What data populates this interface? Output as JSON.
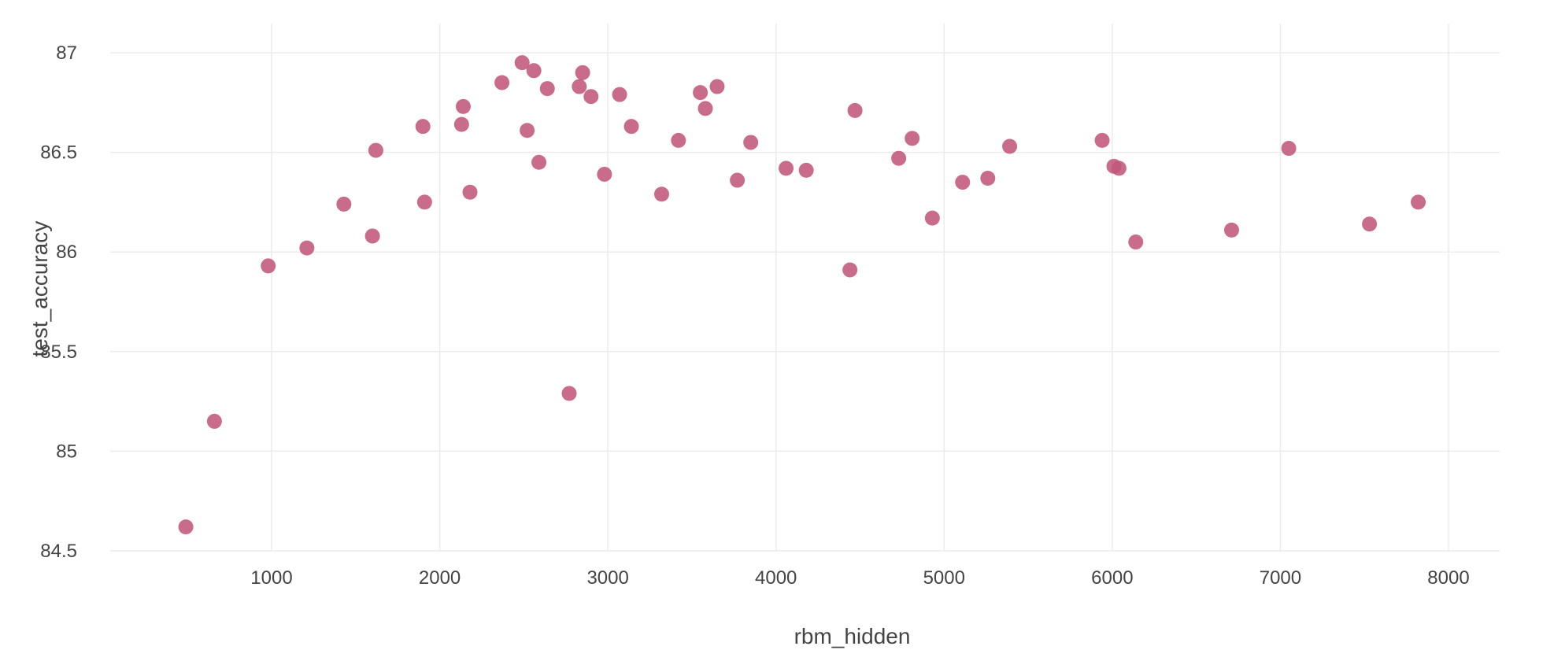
{
  "chart_data": {
    "type": "scatter",
    "title": "",
    "xlabel": "rbm_hidden",
    "ylabel": "test_accuracy",
    "xlim": [
      50,
      8300
    ],
    "ylim": [
      84.5,
      87.1
    ],
    "xticks": [
      1000,
      2000,
      3000,
      4000,
      5000,
      6000,
      7000,
      8000
    ],
    "yticks": [
      84.5,
      85,
      85.5,
      86,
      86.5,
      87
    ],
    "xtick_labels": [
      "1000",
      "2000",
      "3000",
      "4000",
      "5000",
      "6000",
      "7000",
      "8000"
    ],
    "ytick_labels": [
      "84.5",
      "85",
      "85.5",
      "86",
      "86.5",
      "87"
    ],
    "grid": true,
    "legend": "none",
    "marker_color": "#c2577a",
    "series": [
      {
        "points": [
          [
            490,
            84.62
          ],
          [
            660,
            85.15
          ],
          [
            980,
            85.93
          ],
          [
            1210,
            86.02
          ],
          [
            1430,
            86.24
          ],
          [
            1600,
            86.08
          ],
          [
            1620,
            86.51
          ],
          [
            1900,
            86.63
          ],
          [
            1910,
            86.25
          ],
          [
            2130,
            86.64
          ],
          [
            2140,
            86.73
          ],
          [
            2180,
            86.3
          ],
          [
            2370,
            86.85
          ],
          [
            2490,
            86.95
          ],
          [
            2520,
            86.61
          ],
          [
            2560,
            86.91
          ],
          [
            2590,
            86.45
          ],
          [
            2640,
            86.82
          ],
          [
            2770,
            85.29
          ],
          [
            2830,
            86.83
          ],
          [
            2850,
            86.9
          ],
          [
            2900,
            86.78
          ],
          [
            2980,
            86.39
          ],
          [
            3070,
            86.79
          ],
          [
            3140,
            86.63
          ],
          [
            3320,
            86.29
          ],
          [
            3420,
            86.56
          ],
          [
            3550,
            86.8
          ],
          [
            3580,
            86.72
          ],
          [
            3650,
            86.83
          ],
          [
            3770,
            86.36
          ],
          [
            3850,
            86.55
          ],
          [
            4060,
            86.42
          ],
          [
            4180,
            86.41
          ],
          [
            4440,
            85.91
          ],
          [
            4470,
            86.71
          ],
          [
            4730,
            86.47
          ],
          [
            4810,
            86.57
          ],
          [
            4930,
            86.17
          ],
          [
            5110,
            86.35
          ],
          [
            5260,
            86.37
          ],
          [
            5390,
            86.53
          ],
          [
            5940,
            86.56
          ],
          [
            6010,
            86.43
          ],
          [
            6040,
            86.42
          ],
          [
            6140,
            86.05
          ],
          [
            6710,
            86.11
          ],
          [
            7050,
            86.52
          ],
          [
            7530,
            86.14
          ],
          [
            7820,
            86.25
          ]
        ]
      }
    ]
  }
}
